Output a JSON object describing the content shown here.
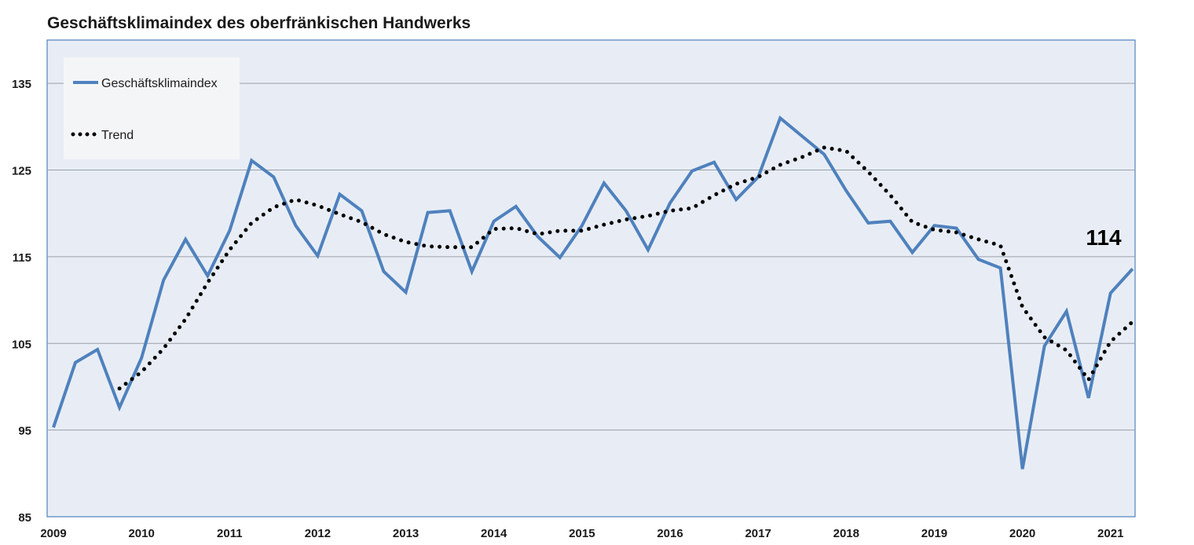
{
  "chart_data": {
    "type": "line",
    "title": "Geschäftsklimaindex des oberfränkischen Handwerks",
    "xlabel": "",
    "ylabel": "",
    "ylim": [
      85,
      140
    ],
    "yticks": [
      85,
      95,
      105,
      115,
      125,
      135
    ],
    "xticks": [
      "2009",
      "2010",
      "2011",
      "2012",
      "2013",
      "2014",
      "2015",
      "2016",
      "2017",
      "2018",
      "2019",
      "2020",
      "2021"
    ],
    "grid": true,
    "legend": "top-left",
    "annotation": "114",
    "plot_background": "#e8edf5",
    "series": [
      {
        "name": "Geschäftsklimaindex",
        "color": "#4f81bd",
        "style": "solid",
        "x": [
          2009.0,
          2009.25,
          2009.5,
          2009.75,
          2010.0,
          2010.25,
          2010.5,
          2010.75,
          2011.0,
          2011.25,
          2011.5,
          2011.75,
          2012.0,
          2012.25,
          2012.5,
          2012.75,
          2013.0,
          2013.25,
          2013.5,
          2013.75,
          2014.0,
          2014.25,
          2014.5,
          2014.75,
          2015.0,
          2015.25,
          2015.5,
          2015.75,
          2016.0,
          2016.25,
          2016.5,
          2016.75,
          2017.0,
          2017.25,
          2017.5,
          2017.75,
          2018.0,
          2018.25,
          2018.5,
          2018.75,
          2019.0,
          2019.25,
          2019.5,
          2019.75,
          2020.0,
          2020.25,
          2020.5,
          2020.75,
          2021.0,
          2021.25
        ],
        "values": [
          95.3,
          102.8,
          104.3,
          97.6,
          103.3,
          112.3,
          117.0,
          112.8,
          118.0,
          126.1,
          124.2,
          118.6,
          115.1,
          122.2,
          120.3,
          113.3,
          110.9,
          120.1,
          120.3,
          113.3,
          119.1,
          120.8,
          117.3,
          114.9,
          118.6,
          123.5,
          120.3,
          115.8,
          121.2,
          124.9,
          125.9,
          121.6,
          124.2,
          131.0,
          128.9,
          126.8,
          122.6,
          118.9,
          119.1,
          115.5,
          118.6,
          118.3,
          114.7,
          113.7,
          90.5,
          104.7,
          108.7,
          98.7,
          110.8,
          113.6
        ]
      },
      {
        "name": "Trend",
        "color": "#000000",
        "style": "dotted",
        "x": [
          2009.75,
          2010.0,
          2010.25,
          2010.5,
          2010.75,
          2011.0,
          2011.25,
          2011.5,
          2011.75,
          2012.0,
          2012.25,
          2012.5,
          2012.75,
          2013.0,
          2013.25,
          2013.5,
          2013.75,
          2014.0,
          2014.25,
          2014.5,
          2014.75,
          2015.0,
          2015.25,
          2015.5,
          2015.75,
          2016.0,
          2016.25,
          2016.5,
          2016.75,
          2017.0,
          2017.25,
          2017.5,
          2017.75,
          2018.0,
          2018.25,
          2018.5,
          2018.75,
          2019.0,
          2019.25,
          2019.5,
          2019.75,
          2020.0,
          2020.25,
          2020.5,
          2020.75,
          2021.0,
          2021.25
        ],
        "values": [
          99.8,
          101.7,
          104.4,
          107.8,
          112.0,
          115.8,
          118.9,
          120.7,
          121.6,
          120.9,
          119.9,
          119.0,
          117.6,
          116.7,
          116.2,
          116.1,
          116.1,
          118.2,
          118.3,
          117.6,
          118.0,
          118.0,
          118.7,
          119.3,
          119.7,
          120.3,
          120.6,
          122.1,
          123.4,
          124.2,
          125.6,
          126.5,
          127.6,
          127.2,
          124.8,
          122.1,
          119.0,
          118.1,
          117.8,
          117.0,
          116.3,
          109.2,
          105.7,
          104.2,
          100.8,
          105.2,
          107.5
        ]
      }
    ]
  }
}
